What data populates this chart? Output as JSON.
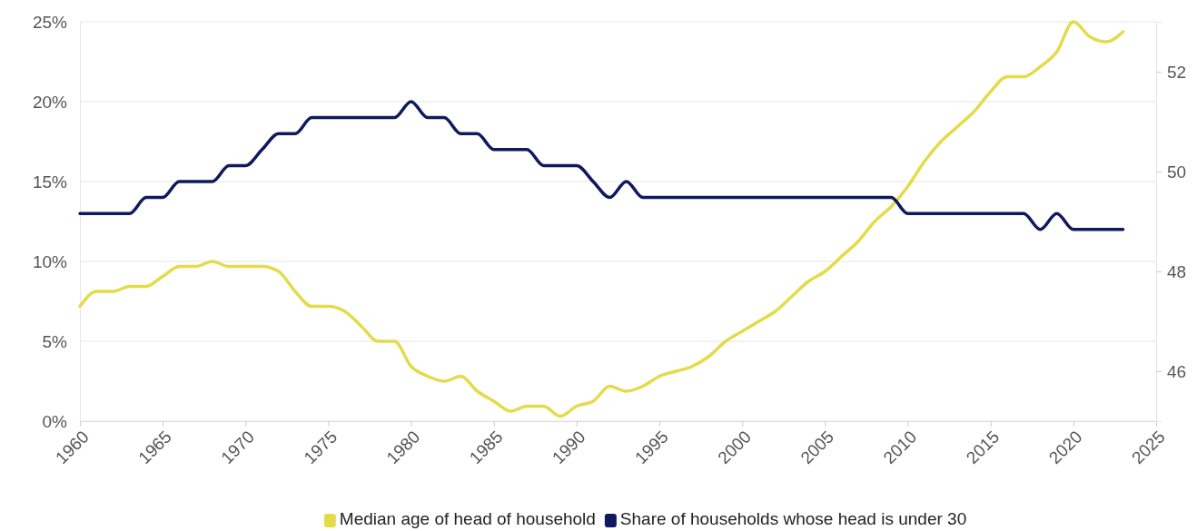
{
  "chart_data": {
    "type": "line",
    "x": [
      1960,
      1961,
      1962,
      1963,
      1964,
      1965,
      1966,
      1967,
      1968,
      1969,
      1970,
      1971,
      1972,
      1973,
      1974,
      1975,
      1976,
      1977,
      1978,
      1979,
      1980,
      1981,
      1982,
      1983,
      1984,
      1985,
      1986,
      1987,
      1988,
      1989,
      1990,
      1991,
      1992,
      1993,
      1994,
      1995,
      1996,
      1997,
      1998,
      1999,
      2000,
      2001,
      2002,
      2003,
      2004,
      2005,
      2006,
      2007,
      2008,
      2009,
      2010,
      2011,
      2012,
      2013,
      2014,
      2015,
      2016,
      2017,
      2018,
      2019,
      2020,
      2021,
      2022,
      2023
    ],
    "series": [
      {
        "name": "Median age of head of household",
        "color": "#e3dc4a",
        "axis": "y2",
        "values": [
          47.3,
          47.6,
          47.6,
          47.7,
          47.7,
          47.9,
          48.1,
          48.1,
          48.2,
          48.1,
          48.1,
          48.1,
          48.0,
          47.6,
          47.3,
          47.3,
          47.2,
          46.9,
          46.6,
          46.6,
          46.1,
          45.9,
          45.8,
          45.9,
          45.6,
          45.4,
          45.2,
          45.3,
          45.3,
          45.1,
          45.3,
          45.4,
          45.7,
          45.6,
          45.7,
          45.9,
          46.0,
          46.1,
          46.3,
          46.6,
          46.8,
          47.0,
          47.2,
          47.5,
          47.8,
          48.0,
          48.3,
          48.6,
          49.0,
          49.3,
          49.7,
          50.2,
          50.6,
          50.9,
          51.2,
          51.6,
          51.9,
          51.9,
          52.1,
          52.4,
          53.0,
          52.7,
          52.6,
          52.8
        ]
      },
      {
        "name": "Share of households whose head is under 30",
        "color": "#0f1a5c",
        "values": [
          13,
          13,
          13,
          13,
          14,
          14,
          15,
          15,
          15,
          16,
          16,
          17,
          18,
          18,
          19,
          19,
          19,
          19,
          19,
          19,
          20,
          19,
          19,
          18,
          18,
          17,
          17,
          17,
          16,
          16,
          16,
          15,
          14,
          15,
          14,
          14,
          14,
          14,
          14,
          14,
          14,
          14,
          14,
          14,
          14,
          14,
          14,
          14,
          14,
          14,
          13,
          13,
          13,
          13,
          13,
          13,
          13,
          13,
          12,
          13,
          12,
          12,
          12,
          12
        ]
      }
    ],
    "xlim": [
      1960,
      2025
    ],
    "xticks": [
      1960,
      1965,
      1970,
      1975,
      1980,
      1985,
      1990,
      1995,
      2000,
      2005,
      2010,
      2015,
      2020,
      2025
    ],
    "ylim": [
      0,
      25
    ],
    "yticks": [
      {
        "value": 0,
        "label": "0%"
      },
      {
        "value": 5,
        "label": "5%"
      },
      {
        "value": 10,
        "label": "10%"
      },
      {
        "value": 15,
        "label": "15%"
      },
      {
        "value": 20,
        "label": "20%"
      },
      {
        "value": 25,
        "label": "25%"
      }
    ],
    "y2lim": [
      45,
      53
    ],
    "y2ticks": [
      46,
      48,
      50,
      52
    ],
    "grid": "y",
    "legend": "bottom"
  }
}
